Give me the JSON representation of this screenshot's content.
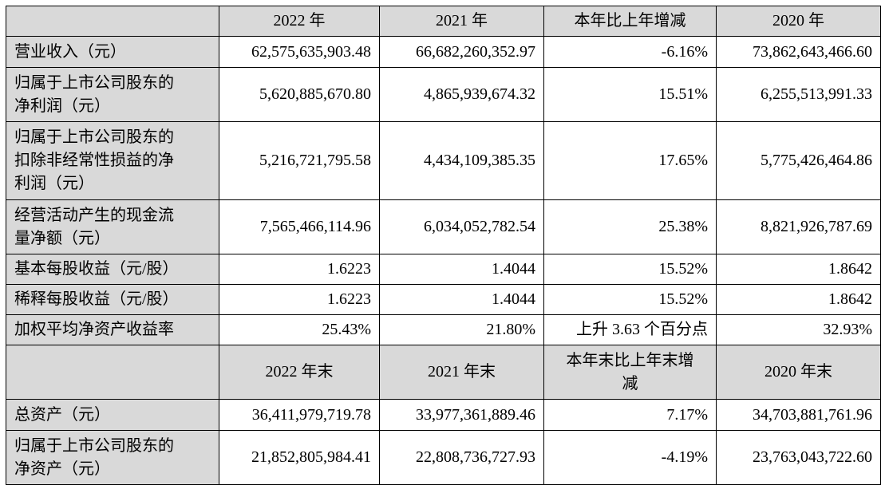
{
  "header1": {
    "col1": "2022 年",
    "col2": "2021 年",
    "col3": "本年比上年增减",
    "col4": "2020 年"
  },
  "rows1": [
    {
      "label": "营业收入（元）",
      "v2022": "62,575,635,903.48",
      "v2021": "66,682,260,352.97",
      "change": "-6.16%",
      "v2020": "73,862,643,466.60"
    },
    {
      "label_line1": "归属于上市公司股东的",
      "label_line2": "净利润（元）",
      "v2022": "5,620,885,670.80",
      "v2021": "4,865,939,674.32",
      "change": "15.51%",
      "v2020": "6,255,513,991.33"
    },
    {
      "label_line1": "归属于上市公司股东的",
      "label_line2": "扣除非经常性损益的净",
      "label_line3": "利润（元）",
      "v2022": "5,216,721,795.58",
      "v2021": "4,434,109,385.35",
      "change": "17.65%",
      "v2020": "5,775,426,464.86"
    },
    {
      "label_line1": "经营活动产生的现金流",
      "label_line2": "量净额（元）",
      "v2022": "7,565,466,114.96",
      "v2021": "6,034,052,782.54",
      "change": "25.38%",
      "v2020": "8,821,926,787.69"
    },
    {
      "label": "基本每股收益（元/股）",
      "v2022": "1.6223",
      "v2021": "1.4044",
      "change": "15.52%",
      "v2020": "1.8642"
    },
    {
      "label": "稀释每股收益（元/股）",
      "v2022": "1.6223",
      "v2021": "1.4044",
      "change": "15.52%",
      "v2020": "1.8642"
    },
    {
      "label": "加权平均净资产收益率",
      "v2022": "25.43%",
      "v2021": "21.80%",
      "change": "上升 3.63 个百分点",
      "v2020": "32.93%"
    }
  ],
  "header2": {
    "col1": "2022 年末",
    "col2": "2021 年末",
    "col3_line1": "本年末比上年末增",
    "col3_line2": "减",
    "col4": "2020 年末"
  },
  "rows2": [
    {
      "label": "总资产（元）",
      "v2022": "36,411,979,719.78",
      "v2021": "33,977,361,889.46",
      "change": "7.17%",
      "v2020": "34,703,881,761.96"
    },
    {
      "label_line1": "归属于上市公司股东的",
      "label_line2": "净资产（元）",
      "v2022": "21,852,805,984.41",
      "v2021": "22,808,736,727.93",
      "change": "-4.19%",
      "v2020": "23,763,043,722.60"
    }
  ]
}
